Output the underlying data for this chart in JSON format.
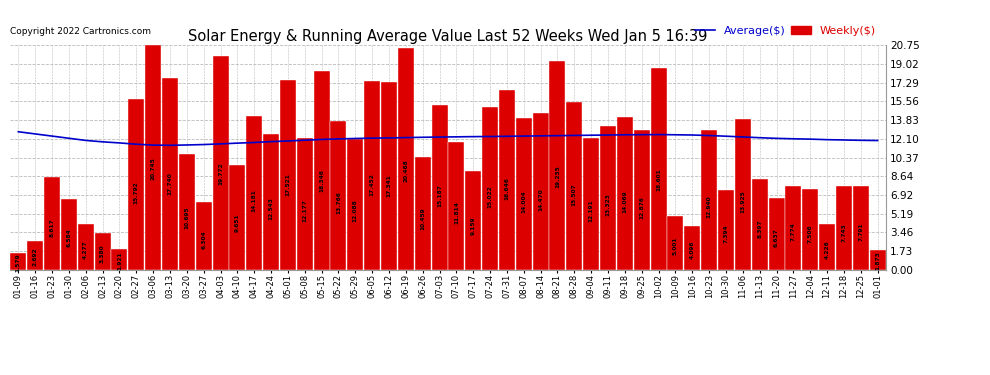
{
  "title": "Solar Energy & Running Average Value Last 52 Weeks Wed Jan 5 16:39",
  "copyright": "Copyright 2022 Cartronics.com",
  "bar_color": "#dd0000",
  "avg_line_color": "#0000cc",
  "background_color": "#ffffff",
  "plot_bg_color": "#ffffff",
  "grid_color": "#bbbbbb",
  "ylabel_right": [
    "0.00",
    "1.73",
    "3.46",
    "5.19",
    "6.92",
    "8.64",
    "10.37",
    "12.10",
    "13.83",
    "15.56",
    "17.29",
    "19.02",
    "20.75"
  ],
  "ylim": [
    0,
    20.75
  ],
  "categories": [
    "01-09",
    "01-16",
    "01-23",
    "01-30",
    "02-06",
    "02-13",
    "02-20",
    "02-27",
    "03-06",
    "03-13",
    "03-20",
    "03-27",
    "04-03",
    "04-10",
    "04-17",
    "04-24",
    "05-01",
    "05-08",
    "05-15",
    "05-22",
    "05-29",
    "06-05",
    "06-12",
    "06-19",
    "06-26",
    "07-03",
    "07-10",
    "07-17",
    "07-24",
    "07-31",
    "08-07",
    "08-14",
    "08-21",
    "08-28",
    "09-04",
    "09-11",
    "09-18",
    "09-25",
    "10-02",
    "10-09",
    "10-16",
    "10-23",
    "10-30",
    "11-06",
    "11-13",
    "11-20",
    "11-27",
    "12-04",
    "12-11",
    "12-18",
    "12-25",
    "01-01"
  ],
  "weekly_values": [
    1.579,
    2.692,
    8.617,
    6.584,
    4.277,
    3.38,
    1.921,
    15.792,
    20.745,
    17.74,
    10.695,
    6.304,
    19.772,
    9.651,
    14.181,
    12.543,
    17.521,
    12.177,
    18.346,
    13.766,
    12.088,
    17.452,
    17.341,
    20.468,
    10.459,
    15.187,
    11.814,
    9.159,
    15.022,
    16.646,
    14.004,
    14.47,
    19.235,
    15.507,
    12.191,
    13.323,
    14.069,
    12.876,
    18.601,
    5.001,
    4.096,
    12.94,
    7.394,
    13.925,
    8.397,
    6.637,
    7.774,
    7.506,
    4.226,
    7.743,
    7.791,
    1.873
  ],
  "avg_values": [
    12.75,
    12.55,
    12.35,
    12.15,
    11.95,
    11.82,
    11.72,
    11.6,
    11.52,
    11.5,
    11.53,
    11.57,
    11.63,
    11.7,
    11.76,
    11.84,
    11.9,
    11.97,
    12.04,
    12.09,
    12.13,
    12.16,
    12.18,
    12.21,
    12.24,
    12.26,
    12.28,
    12.3,
    12.31,
    12.33,
    12.35,
    12.37,
    12.39,
    12.41,
    12.43,
    12.45,
    12.47,
    12.48,
    12.49,
    12.47,
    12.45,
    12.4,
    12.34,
    12.27,
    12.2,
    12.14,
    12.1,
    12.07,
    12.02,
    11.99,
    11.96,
    11.94
  ],
  "legend_avg_label": "Average($)",
  "legend_weekly_label": "Weekly($)"
}
